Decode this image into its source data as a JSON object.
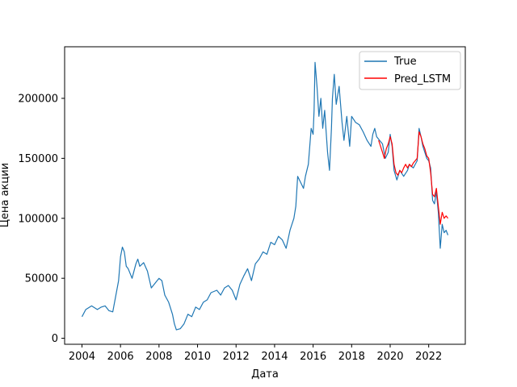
{
  "chart_data": {
    "type": "line",
    "title": "",
    "xlabel": "Дата",
    "ylabel": "Цена акции",
    "xlim": [
      2003.1,
      2023.9
    ],
    "ylim": [
      -5000,
      243000
    ],
    "x_ticks": [
      2004,
      2006,
      2008,
      2010,
      2012,
      2014,
      2016,
      2018,
      2020,
      2022
    ],
    "y_ticks": [
      0,
      50000,
      100000,
      150000,
      200000
    ],
    "x_tick_labels": [
      "2004",
      "2006",
      "2008",
      "2010",
      "2012",
      "2014",
      "2016",
      "2018",
      "2020",
      "2022"
    ],
    "y_tick_labels": [
      "0",
      "50000",
      "100000",
      "150000",
      "200000"
    ],
    "grid": false,
    "legend_position": "top-right",
    "series": [
      {
        "name": "True",
        "color": "#1f77b4",
        "points": [
          [
            2004.0,
            18000
          ],
          [
            2004.2,
            24000
          ],
          [
            2004.5,
            27000
          ],
          [
            2004.8,
            24000
          ],
          [
            2005.0,
            26000
          ],
          [
            2005.2,
            27000
          ],
          [
            2005.4,
            23000
          ],
          [
            2005.6,
            22000
          ],
          [
            2005.75,
            35000
          ],
          [
            2005.9,
            48000
          ],
          [
            2006.0,
            68000
          ],
          [
            2006.1,
            76000
          ],
          [
            2006.2,
            72000
          ],
          [
            2006.3,
            60000
          ],
          [
            2006.4,
            58000
          ],
          [
            2006.6,
            50000
          ],
          [
            2006.8,
            62000
          ],
          [
            2006.9,
            66000
          ],
          [
            2007.0,
            60000
          ],
          [
            2007.2,
            63000
          ],
          [
            2007.4,
            56000
          ],
          [
            2007.6,
            42000
          ],
          [
            2007.8,
            46000
          ],
          [
            2008.0,
            50000
          ],
          [
            2008.15,
            48000
          ],
          [
            2008.3,
            36000
          ],
          [
            2008.5,
            30000
          ],
          [
            2008.7,
            20000
          ],
          [
            2008.8,
            12000
          ],
          [
            2008.9,
            7000
          ],
          [
            2009.1,
            8000
          ],
          [
            2009.3,
            12000
          ],
          [
            2009.5,
            20000
          ],
          [
            2009.7,
            18000
          ],
          [
            2009.9,
            26000
          ],
          [
            2010.1,
            24000
          ],
          [
            2010.3,
            30000
          ],
          [
            2010.5,
            32000
          ],
          [
            2010.7,
            38000
          ],
          [
            2011.0,
            40000
          ],
          [
            2011.2,
            36000
          ],
          [
            2011.4,
            42000
          ],
          [
            2011.6,
            44000
          ],
          [
            2011.8,
            40000
          ],
          [
            2012.0,
            32000
          ],
          [
            2012.2,
            45000
          ],
          [
            2012.4,
            52000
          ],
          [
            2012.6,
            58000
          ],
          [
            2012.8,
            48000
          ],
          [
            2013.0,
            62000
          ],
          [
            2013.2,
            66000
          ],
          [
            2013.4,
            72000
          ],
          [
            2013.6,
            70000
          ],
          [
            2013.8,
            80000
          ],
          [
            2014.0,
            78000
          ],
          [
            2014.2,
            85000
          ],
          [
            2014.4,
            82000
          ],
          [
            2014.6,
            75000
          ],
          [
            2014.8,
            90000
          ],
          [
            2015.0,
            100000
          ],
          [
            2015.1,
            110000
          ],
          [
            2015.2,
            135000
          ],
          [
            2015.35,
            130000
          ],
          [
            2015.5,
            125000
          ],
          [
            2015.6,
            135000
          ],
          [
            2015.75,
            145000
          ],
          [
            2015.9,
            175000
          ],
          [
            2016.0,
            170000
          ],
          [
            2016.05,
            190000
          ],
          [
            2016.1,
            230000
          ],
          [
            2016.2,
            210000
          ],
          [
            2016.3,
            185000
          ],
          [
            2016.4,
            200000
          ],
          [
            2016.5,
            175000
          ],
          [
            2016.6,
            190000
          ],
          [
            2016.75,
            155000
          ],
          [
            2016.85,
            140000
          ],
          [
            2016.95,
            175000
          ],
          [
            2017.0,
            200000
          ],
          [
            2017.1,
            220000
          ],
          [
            2017.2,
            195000
          ],
          [
            2017.35,
            210000
          ],
          [
            2017.5,
            180000
          ],
          [
            2017.6,
            165000
          ],
          [
            2017.75,
            185000
          ],
          [
            2017.9,
            160000
          ],
          [
            2018.0,
            185000
          ],
          [
            2018.2,
            180000
          ],
          [
            2018.4,
            178000
          ],
          [
            2018.6,
            172000
          ],
          [
            2018.8,
            165000
          ],
          [
            2019.0,
            160000
          ],
          [
            2019.1,
            170000
          ],
          [
            2019.2,
            175000
          ],
          [
            2019.3,
            168000
          ],
          [
            2019.45,
            165000
          ],
          [
            2019.6,
            162000
          ],
          [
            2019.75,
            150000
          ],
          [
            2019.9,
            155000
          ],
          [
            2020.0,
            170000
          ],
          [
            2020.1,
            160000
          ],
          [
            2020.2,
            140000
          ],
          [
            2020.35,
            132000
          ],
          [
            2020.5,
            140000
          ],
          [
            2020.7,
            135000
          ],
          [
            2020.9,
            140000
          ],
          [
            2021.0,
            145000
          ],
          [
            2021.2,
            142000
          ],
          [
            2021.4,
            148000
          ],
          [
            2021.5,
            175000
          ],
          [
            2021.6,
            168000
          ],
          [
            2021.7,
            160000
          ],
          [
            2021.8,
            155000
          ],
          [
            2021.9,
            150000
          ],
          [
            2022.0,
            148000
          ],
          [
            2022.1,
            142000
          ],
          [
            2022.2,
            115000
          ],
          [
            2022.3,
            112000
          ],
          [
            2022.4,
            122000
          ],
          [
            2022.5,
            105000
          ],
          [
            2022.6,
            75000
          ],
          [
            2022.7,
            95000
          ],
          [
            2022.8,
            88000
          ],
          [
            2022.9,
            90000
          ],
          [
            2023.0,
            86000
          ]
        ]
      },
      {
        "name": "Pred_LSTM",
        "color": "#ff0000",
        "points": [
          [
            2019.4,
            165000
          ],
          [
            2019.5,
            160000
          ],
          [
            2019.6,
            155000
          ],
          [
            2019.7,
            150000
          ],
          [
            2019.8,
            158000
          ],
          [
            2019.9,
            162000
          ],
          [
            2020.0,
            168000
          ],
          [
            2020.1,
            162000
          ],
          [
            2020.2,
            145000
          ],
          [
            2020.3,
            138000
          ],
          [
            2020.4,
            136000
          ],
          [
            2020.5,
            140000
          ],
          [
            2020.6,
            138000
          ],
          [
            2020.7,
            142000
          ],
          [
            2020.8,
            145000
          ],
          [
            2020.9,
            142000
          ],
          [
            2021.0,
            145000
          ],
          [
            2021.1,
            143000
          ],
          [
            2021.2,
            146000
          ],
          [
            2021.3,
            148000
          ],
          [
            2021.4,
            150000
          ],
          [
            2021.5,
            172000
          ],
          [
            2021.6,
            168000
          ],
          [
            2021.7,
            162000
          ],
          [
            2021.8,
            158000
          ],
          [
            2021.9,
            152000
          ],
          [
            2022.0,
            150000
          ],
          [
            2022.1,
            138000
          ],
          [
            2022.2,
            120000
          ],
          [
            2022.3,
            118000
          ],
          [
            2022.4,
            125000
          ],
          [
            2022.5,
            110000
          ],
          [
            2022.6,
            95000
          ],
          [
            2022.7,
            105000
          ],
          [
            2022.8,
            100000
          ],
          [
            2022.9,
            102000
          ],
          [
            2023.0,
            100000
          ]
        ]
      }
    ]
  }
}
